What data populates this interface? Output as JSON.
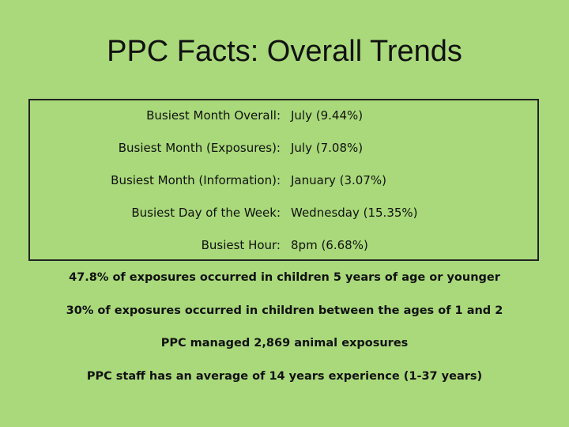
{
  "title": "PPC Facts: Overall Trends",
  "table": {
    "rows": [
      [
        "Busiest Month Overall:",
        "July (9.44%)"
      ],
      [
        "Busiest Month (Exposures):",
        "July (7.08%)"
      ],
      [
        "Busiest Month (Information):",
        "January (3.07%)"
      ],
      [
        "Busiest Day of the Week:",
        "Wednesday (15.35%)"
      ],
      [
        "Busiest Hour:",
        "8pm (6.68%)"
      ]
    ]
  },
  "facts": [
    "47.8% of exposures occurred in children 5 years of age or younger",
    "30% of exposures occurred in children between the ages of 1 and 2",
    "PPC managed 2,869 animal exposures",
    "PPC staff has an average of 14 years experience (1-37 years)"
  ]
}
